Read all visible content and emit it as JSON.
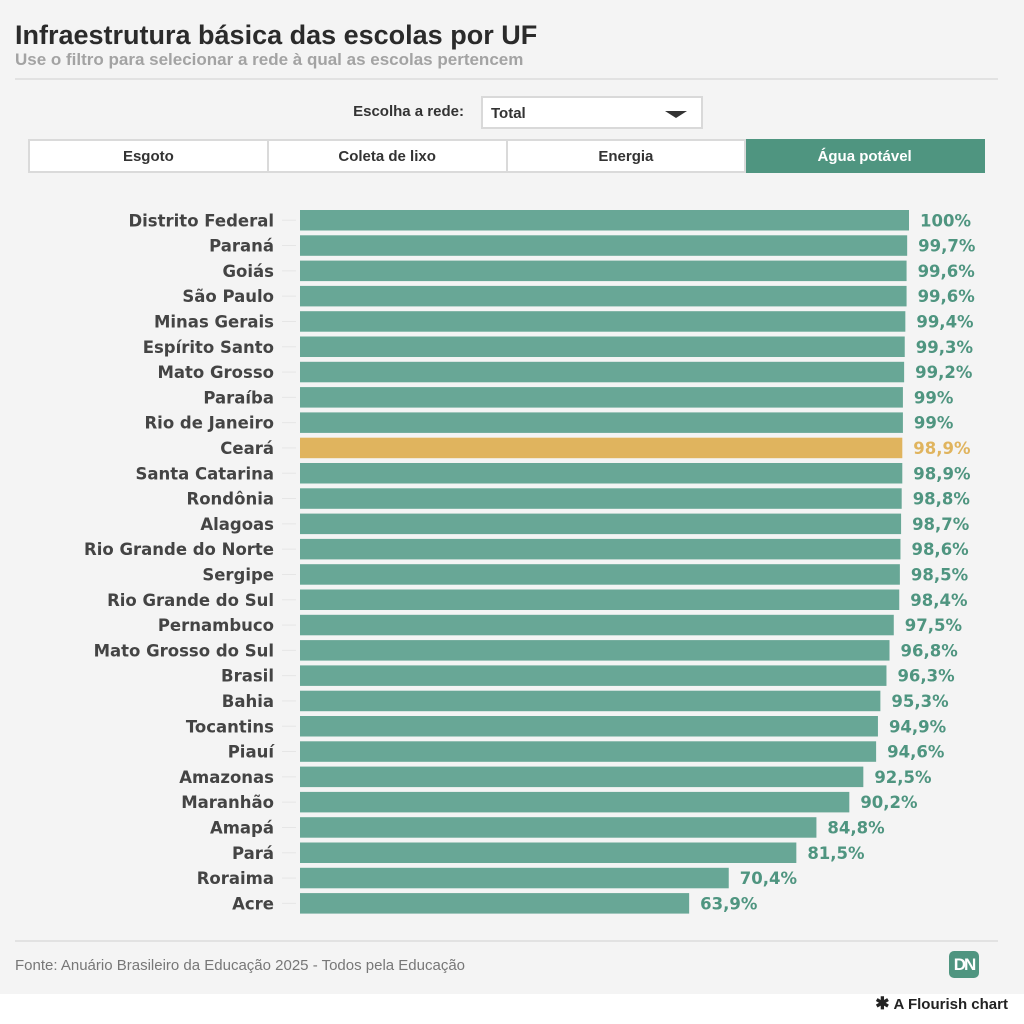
{
  "header": {
    "title": "Infraestrutura básica das escolas por UF",
    "subtitle": "Use o filtro para selecionar a rede à qual as escolas pertencem"
  },
  "filter": {
    "label": "Escolha a rede:",
    "selected": "Total"
  },
  "tabs": [
    {
      "label": "Esgoto",
      "active": false
    },
    {
      "label": "Coleta de lixo",
      "active": false
    },
    {
      "label": "Energia",
      "active": false
    },
    {
      "label": "Água potável",
      "active": true
    }
  ],
  "colors": {
    "bar": "#68a796",
    "highlight": "#e0b45e",
    "label": "#4f9580",
    "active_tab": "#4f9580"
  },
  "chart_data": {
    "type": "bar",
    "orientation": "horizontal",
    "title": "Infraestrutura básica das escolas por UF",
    "xlabel": "",
    "ylabel": "",
    "xlim": [
      0,
      100
    ],
    "grid": false,
    "highlighted": "Ceará",
    "categories": [
      "Distrito Federal",
      "Paraná",
      "Goiás",
      "São Paulo",
      "Minas Gerais",
      "Espírito Santo",
      "Mato Grosso",
      "Paraíba",
      "Rio de Janeiro",
      "Ceará",
      "Santa Catarina",
      "Rondônia",
      "Alagoas",
      "Rio Grande do Norte",
      "Sergipe",
      "Rio Grande do Sul",
      "Pernambuco",
      "Mato Grosso do Sul",
      "Brasil",
      "Bahia",
      "Tocantins",
      "Piauí",
      "Amazonas",
      "Maranhão",
      "Amapá",
      "Pará",
      "Roraima",
      "Acre"
    ],
    "values": [
      100,
      99.7,
      99.6,
      99.6,
      99.4,
      99.3,
      99.2,
      99,
      99,
      98.9,
      98.9,
      98.8,
      98.7,
      98.6,
      98.5,
      98.4,
      97.5,
      96.8,
      96.3,
      95.3,
      94.9,
      94.6,
      92.5,
      90.2,
      84.8,
      81.5,
      70.4,
      63.9
    ],
    "value_labels": [
      "100%",
      "99,7%",
      "99,6%",
      "99,6%",
      "99,4%",
      "99,3%",
      "99,2%",
      "99%",
      "99%",
      "98,9%",
      "98,9%",
      "98,8%",
      "98,7%",
      "98,6%",
      "98,5%",
      "98,4%",
      "97,5%",
      "96,8%",
      "96,3%",
      "95,3%",
      "94,9%",
      "94,6%",
      "92,5%",
      "90,2%",
      "84,8%",
      "81,5%",
      "70,4%",
      "63,9%"
    ]
  },
  "footer": {
    "source": "Fonte: Anuário Brasileiro da Educação 2025 - Todos pela Educação",
    "logo": "DN",
    "credit": "A Flourish chart",
    "credit_icon": "✱"
  }
}
